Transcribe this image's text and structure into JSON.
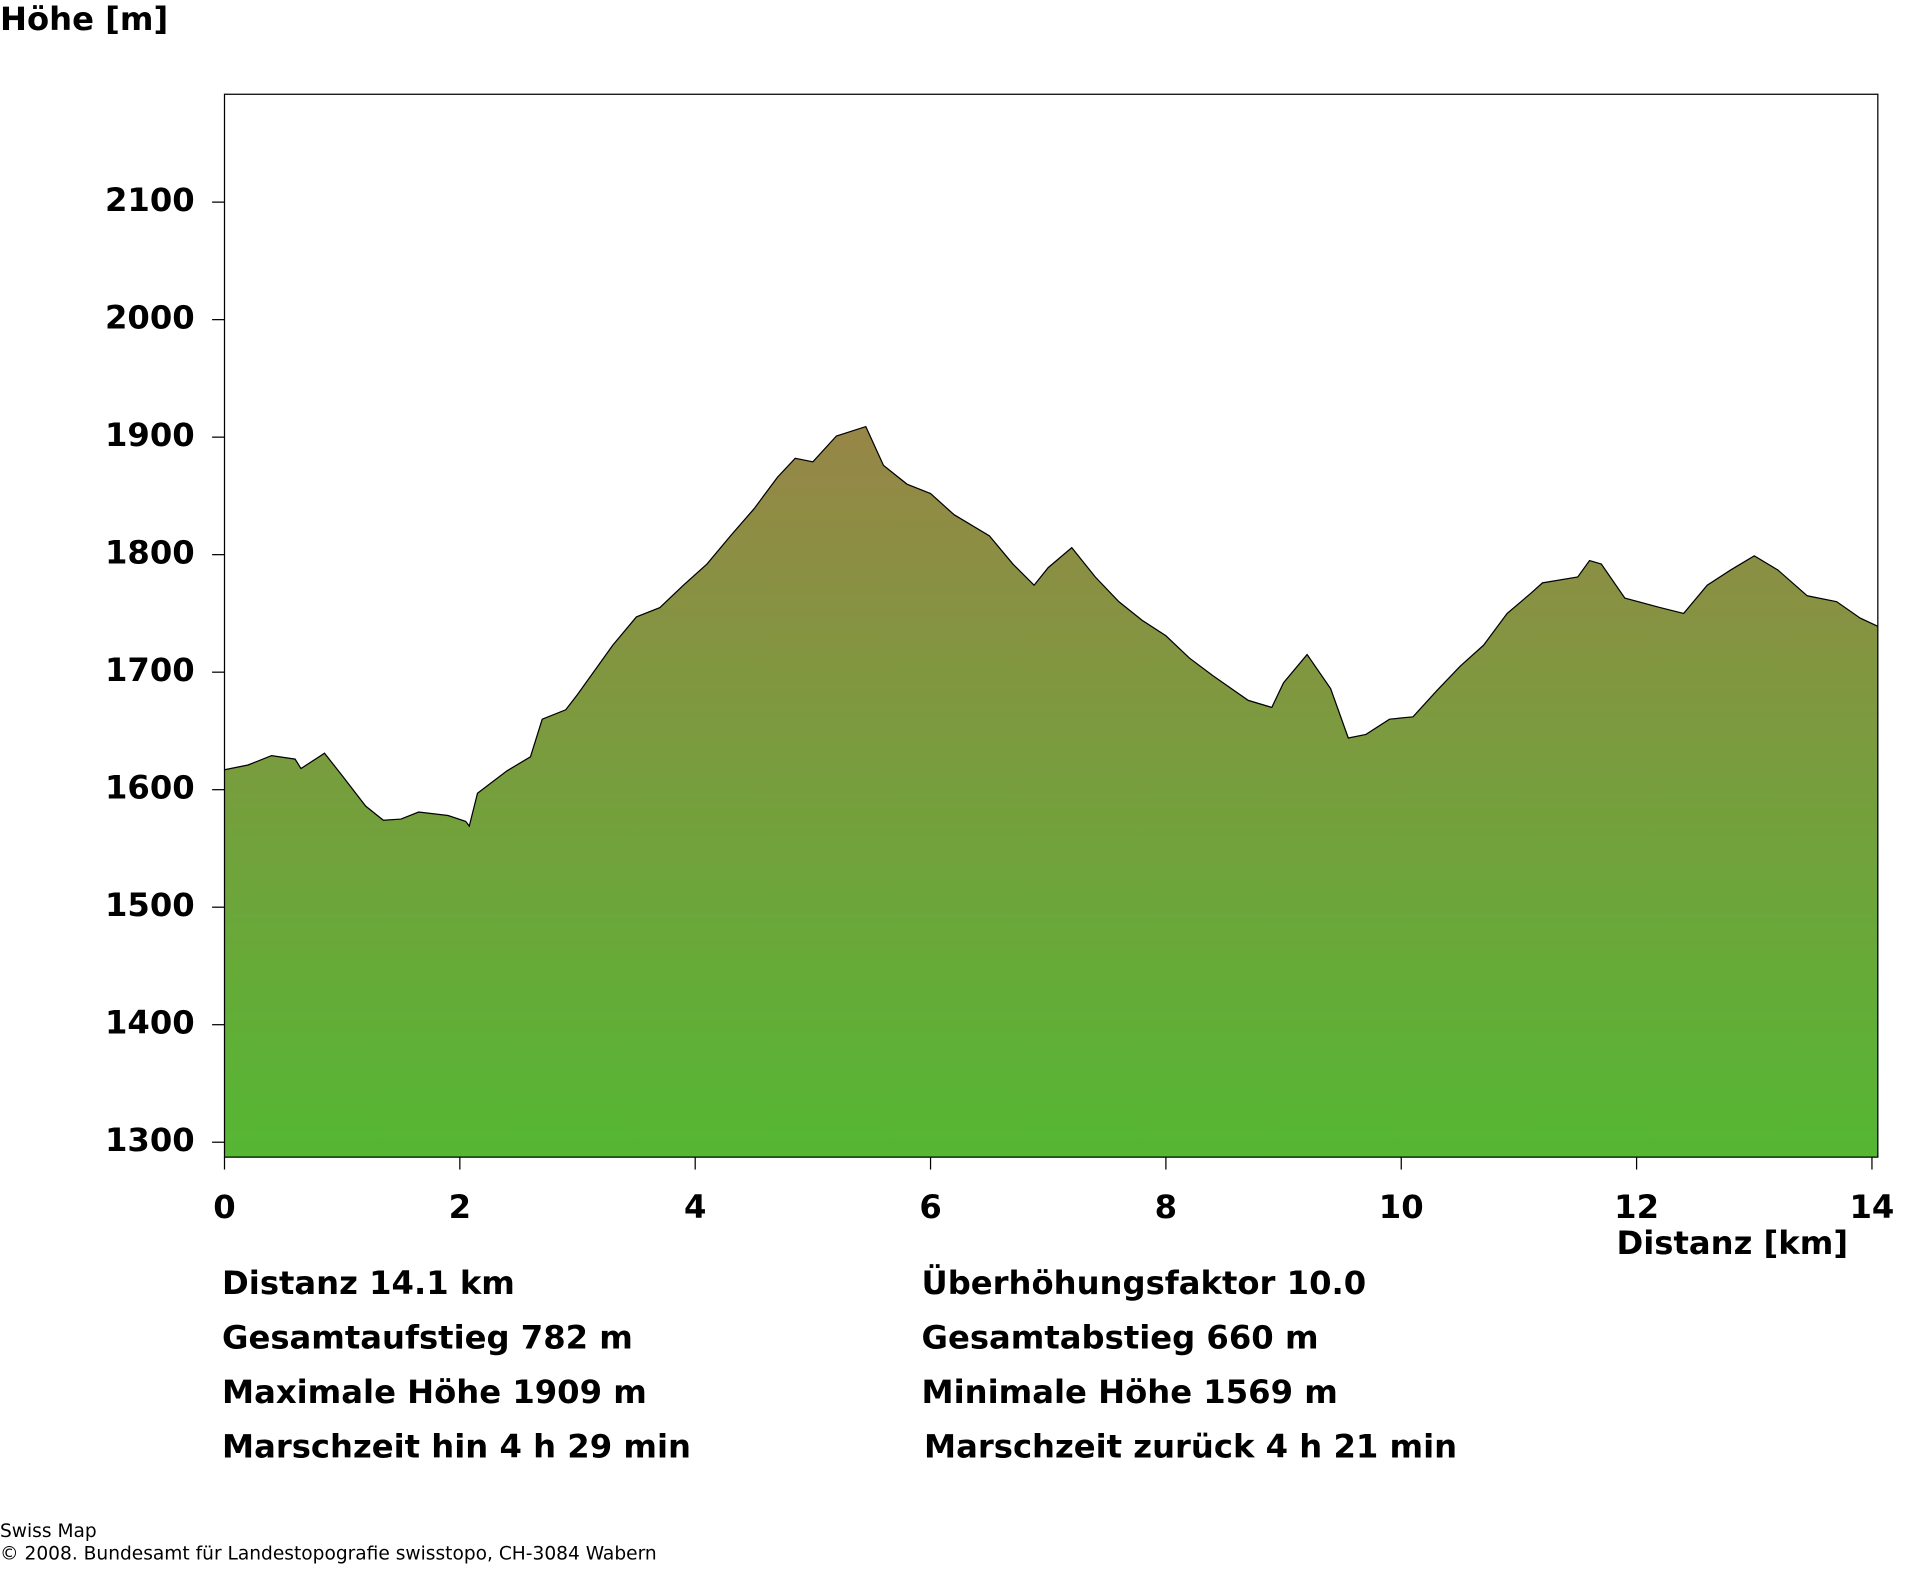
{
  "chart_data": {
    "type": "area",
    "y_label": "Höhe [m]",
    "x_label": "Distanz [km]",
    "x": [
      0,
      0.2,
      0.4,
      0.6,
      0.65,
      0.85,
      1.0,
      1.2,
      1.35,
      1.5,
      1.65,
      1.9,
      2.05,
      2.08,
      2.15,
      2.4,
      2.6,
      2.7,
      2.9,
      3.0,
      3.3,
      3.5,
      3.7,
      3.9,
      4.1,
      4.3,
      4.5,
      4.7,
      4.85,
      5.0,
      5.2,
      5.45,
      5.6,
      5.8,
      6.0,
      6.2,
      6.5,
      6.7,
      6.88,
      7.0,
      7.2,
      7.4,
      7.6,
      7.8,
      8.0,
      8.2,
      8.4,
      8.7,
      8.9,
      9.0,
      9.2,
      9.4,
      9.55,
      9.7,
      9.9,
      10.1,
      10.3,
      10.5,
      10.7,
      10.9,
      11.1,
      11.2,
      11.5,
      11.6,
      11.7,
      11.9,
      12.2,
      12.4,
      12.6,
      12.8,
      13.0,
      13.2,
      13.45,
      13.7,
      13.9,
      14.05
    ],
    "values": [
      1617,
      1621,
      1629,
      1626,
      1618,
      1631,
      1612,
      1586,
      1574,
      1575,
      1581,
      1578,
      1573,
      1569,
      1597,
      1616,
      1628,
      1660,
      1668,
      1681,
      1723,
      1747,
      1755,
      1774,
      1792,
      1816,
      1839,
      1866,
      1882,
      1879,
      1901,
      1909,
      1876,
      1860,
      1852,
      1834,
      1816,
      1792,
      1774,
      1789,
      1806,
      1781,
      1760,
      1744,
      1731,
      1712,
      1697,
      1676,
      1670,
      1691,
      1715,
      1686,
      1644,
      1647,
      1660,
      1662,
      1684,
      1705,
      1723,
      1750,
      1767,
      1776,
      1781,
      1795,
      1792,
      1763,
      1755,
      1750,
      1774,
      1787,
      1799,
      1787,
      1765,
      1760,
      1746,
      1739
    ],
    "color_top": "#978647",
    "color_bottom": "#55b733",
    "xlim": [
      0,
      14.05
    ],
    "ylim": [
      1287.3,
      2191.8
    ],
    "xticks": [
      0,
      2,
      4,
      6,
      8,
      10,
      12,
      14
    ],
    "yticks": [
      1300,
      1400,
      1500,
      1600,
      1700,
      1800,
      1900,
      2000,
      2100
    ]
  },
  "stats": [
    [
      "Distanz 14.1 km",
      "Überhöhungsfaktor 10.0"
    ],
    [
      "Gesamtaufstieg  782 m",
      "Gesamtabstieg  660 m"
    ],
    [
      "Maximale Höhe  1909 m",
      "Minimale Höhe  1569 m"
    ],
    [
      "Marschzeit hin  4 h 29 min",
      "Marschzeit zurück  4 h 21 min"
    ]
  ],
  "footer": [
    "Swiss Map",
    "© 2008. Bundesamt für Landestopografie swisstopo, CH-3084 Wabern"
  ]
}
